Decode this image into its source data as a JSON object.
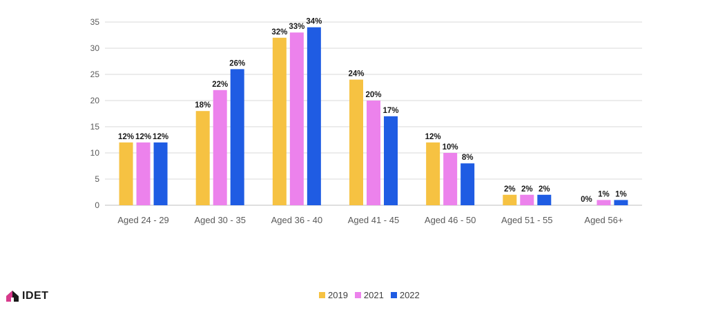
{
  "chart_data": {
    "type": "bar",
    "title": "",
    "xlabel": "",
    "ylabel": "",
    "ylim": [
      0,
      35
    ],
    "yticks": [
      0,
      5,
      10,
      15,
      20,
      25,
      30,
      35
    ],
    "grid": true,
    "legend_position": "bottom",
    "categories": [
      "Aged 24 - 29",
      "Aged 30 - 35",
      "Aged 36 - 40",
      "Aged 41 - 45",
      "Aged 46 - 50",
      "Aged 51 - 55",
      "Aged 56+"
    ],
    "series": [
      {
        "name": "2019",
        "color": "#f6c242",
        "values": [
          12,
          18,
          32,
          24,
          12,
          2,
          0
        ],
        "labels": [
          "12%",
          "18%",
          "32%",
          "24%",
          "12%",
          "2%",
          "0%"
        ]
      },
      {
        "name": "2021",
        "color": "#ec82ec",
        "values": [
          12,
          22,
          33,
          20,
          10,
          2,
          1
        ],
        "labels": [
          "12%",
          "22%",
          "33%",
          "20%",
          "10%",
          "2%",
          "1%"
        ]
      },
      {
        "name": "2022",
        "color": "#1f5ce3",
        "values": [
          12,
          26,
          34,
          17,
          8,
          2,
          1
        ],
        "labels": [
          "12%",
          "26%",
          "34%",
          "17%",
          "8%",
          "2%",
          "1%"
        ]
      }
    ]
  },
  "logo": {
    "text": "IDET",
    "icon": "house-logo-icon"
  }
}
